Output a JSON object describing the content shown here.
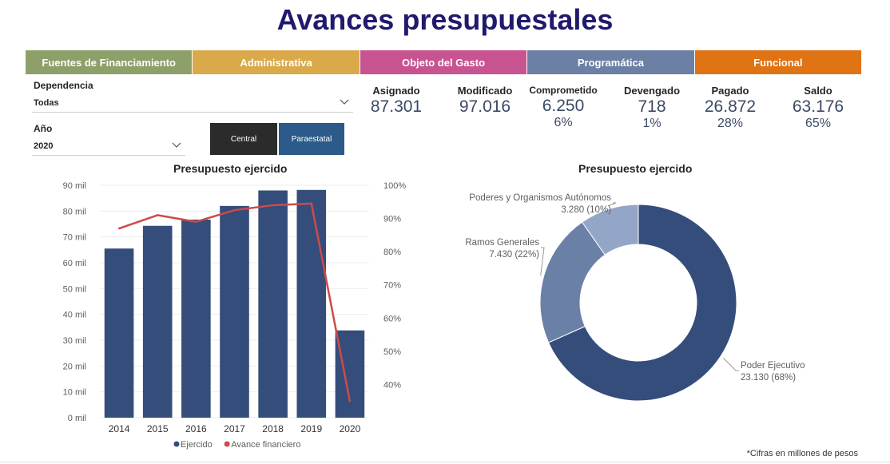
{
  "title": "Avances presupuestales",
  "tabs": [
    {
      "label": "Fuentes de Financiamiento",
      "color": "#8da06a"
    },
    {
      "label": "Administrativa",
      "color": "#d9a94a"
    },
    {
      "label": "Objeto del Gasto",
      "color": "#c85391"
    },
    {
      "label": "Programática",
      "color": "#6b80a4"
    },
    {
      "label": "Funcional",
      "color": "#e07314"
    }
  ],
  "filters": {
    "dependencia_label": "Dependencia",
    "dependencia_value": "Todas",
    "anio_label": "Año",
    "anio_value": "2020"
  },
  "buttons": {
    "central": "Central",
    "paraestatal": "Paraestatal"
  },
  "kpis": [
    {
      "label": "Asignado",
      "value": "87.301",
      "pct": ""
    },
    {
      "label": "Modificado",
      "value": "97.016",
      "pct": ""
    },
    {
      "label": "Comprometido",
      "value": "6.250",
      "pct": "6%"
    },
    {
      "label": "Devengado",
      "value": "718",
      "pct": "1%"
    },
    {
      "label": "Pagado",
      "value": "26.872",
      "pct": "28%"
    },
    {
      "label": "Saldo",
      "value": "63.176",
      "pct": "65%"
    }
  ],
  "footnote": "*Cifras en millones de pesos",
  "chart_data": [
    {
      "type": "bar",
      "title": "Presupuesto ejercido",
      "categories": [
        "2014",
        "2015",
        "2016",
        "2017",
        "2018",
        "2019",
        "2020"
      ],
      "series": [
        {
          "name": "Ejercido",
          "type": "bar",
          "axis": "left",
          "color": "#354d7a",
          "values": [
            65500,
            74300,
            76700,
            82000,
            88000,
            88200,
            33800
          ]
        },
        {
          "name": "Avance financiero",
          "type": "line",
          "axis": "right",
          "color": "#cc4b4b",
          "values": [
            87,
            91,
            89,
            92.5,
            94,
            94.5,
            35
          ]
        }
      ],
      "ylim": [
        0,
        90000
      ],
      "y_ticks": [
        "0 mil",
        "10 mil",
        "20 mil",
        "30 mil",
        "40 mil",
        "50 mil",
        "60 mil",
        "70 mil",
        "80 mil",
        "90 mil"
      ],
      "y2_ticks": [
        "40%",
        "50%",
        "60%",
        "70%",
        "80%",
        "90%",
        "100%"
      ],
      "y2lim": [
        30,
        100
      ],
      "legend_position": "bottom"
    },
    {
      "type": "pie",
      "title": "Presupuesto ejercido",
      "slices": [
        {
          "label": "Poder Ejecutivo",
          "value_label": "23.130 (68%)",
          "value": 23130,
          "color": "#354d7a"
        },
        {
          "label": "Ramos Generales",
          "value_label": "7.430 (22%)",
          "value": 7430,
          "color": "#6b80a6"
        },
        {
          "label": "Poderes y Organismos Autónomos",
          "value_label": "3.280 (10%)",
          "value": 3280,
          "color": "#93a6c8"
        }
      ]
    }
  ]
}
